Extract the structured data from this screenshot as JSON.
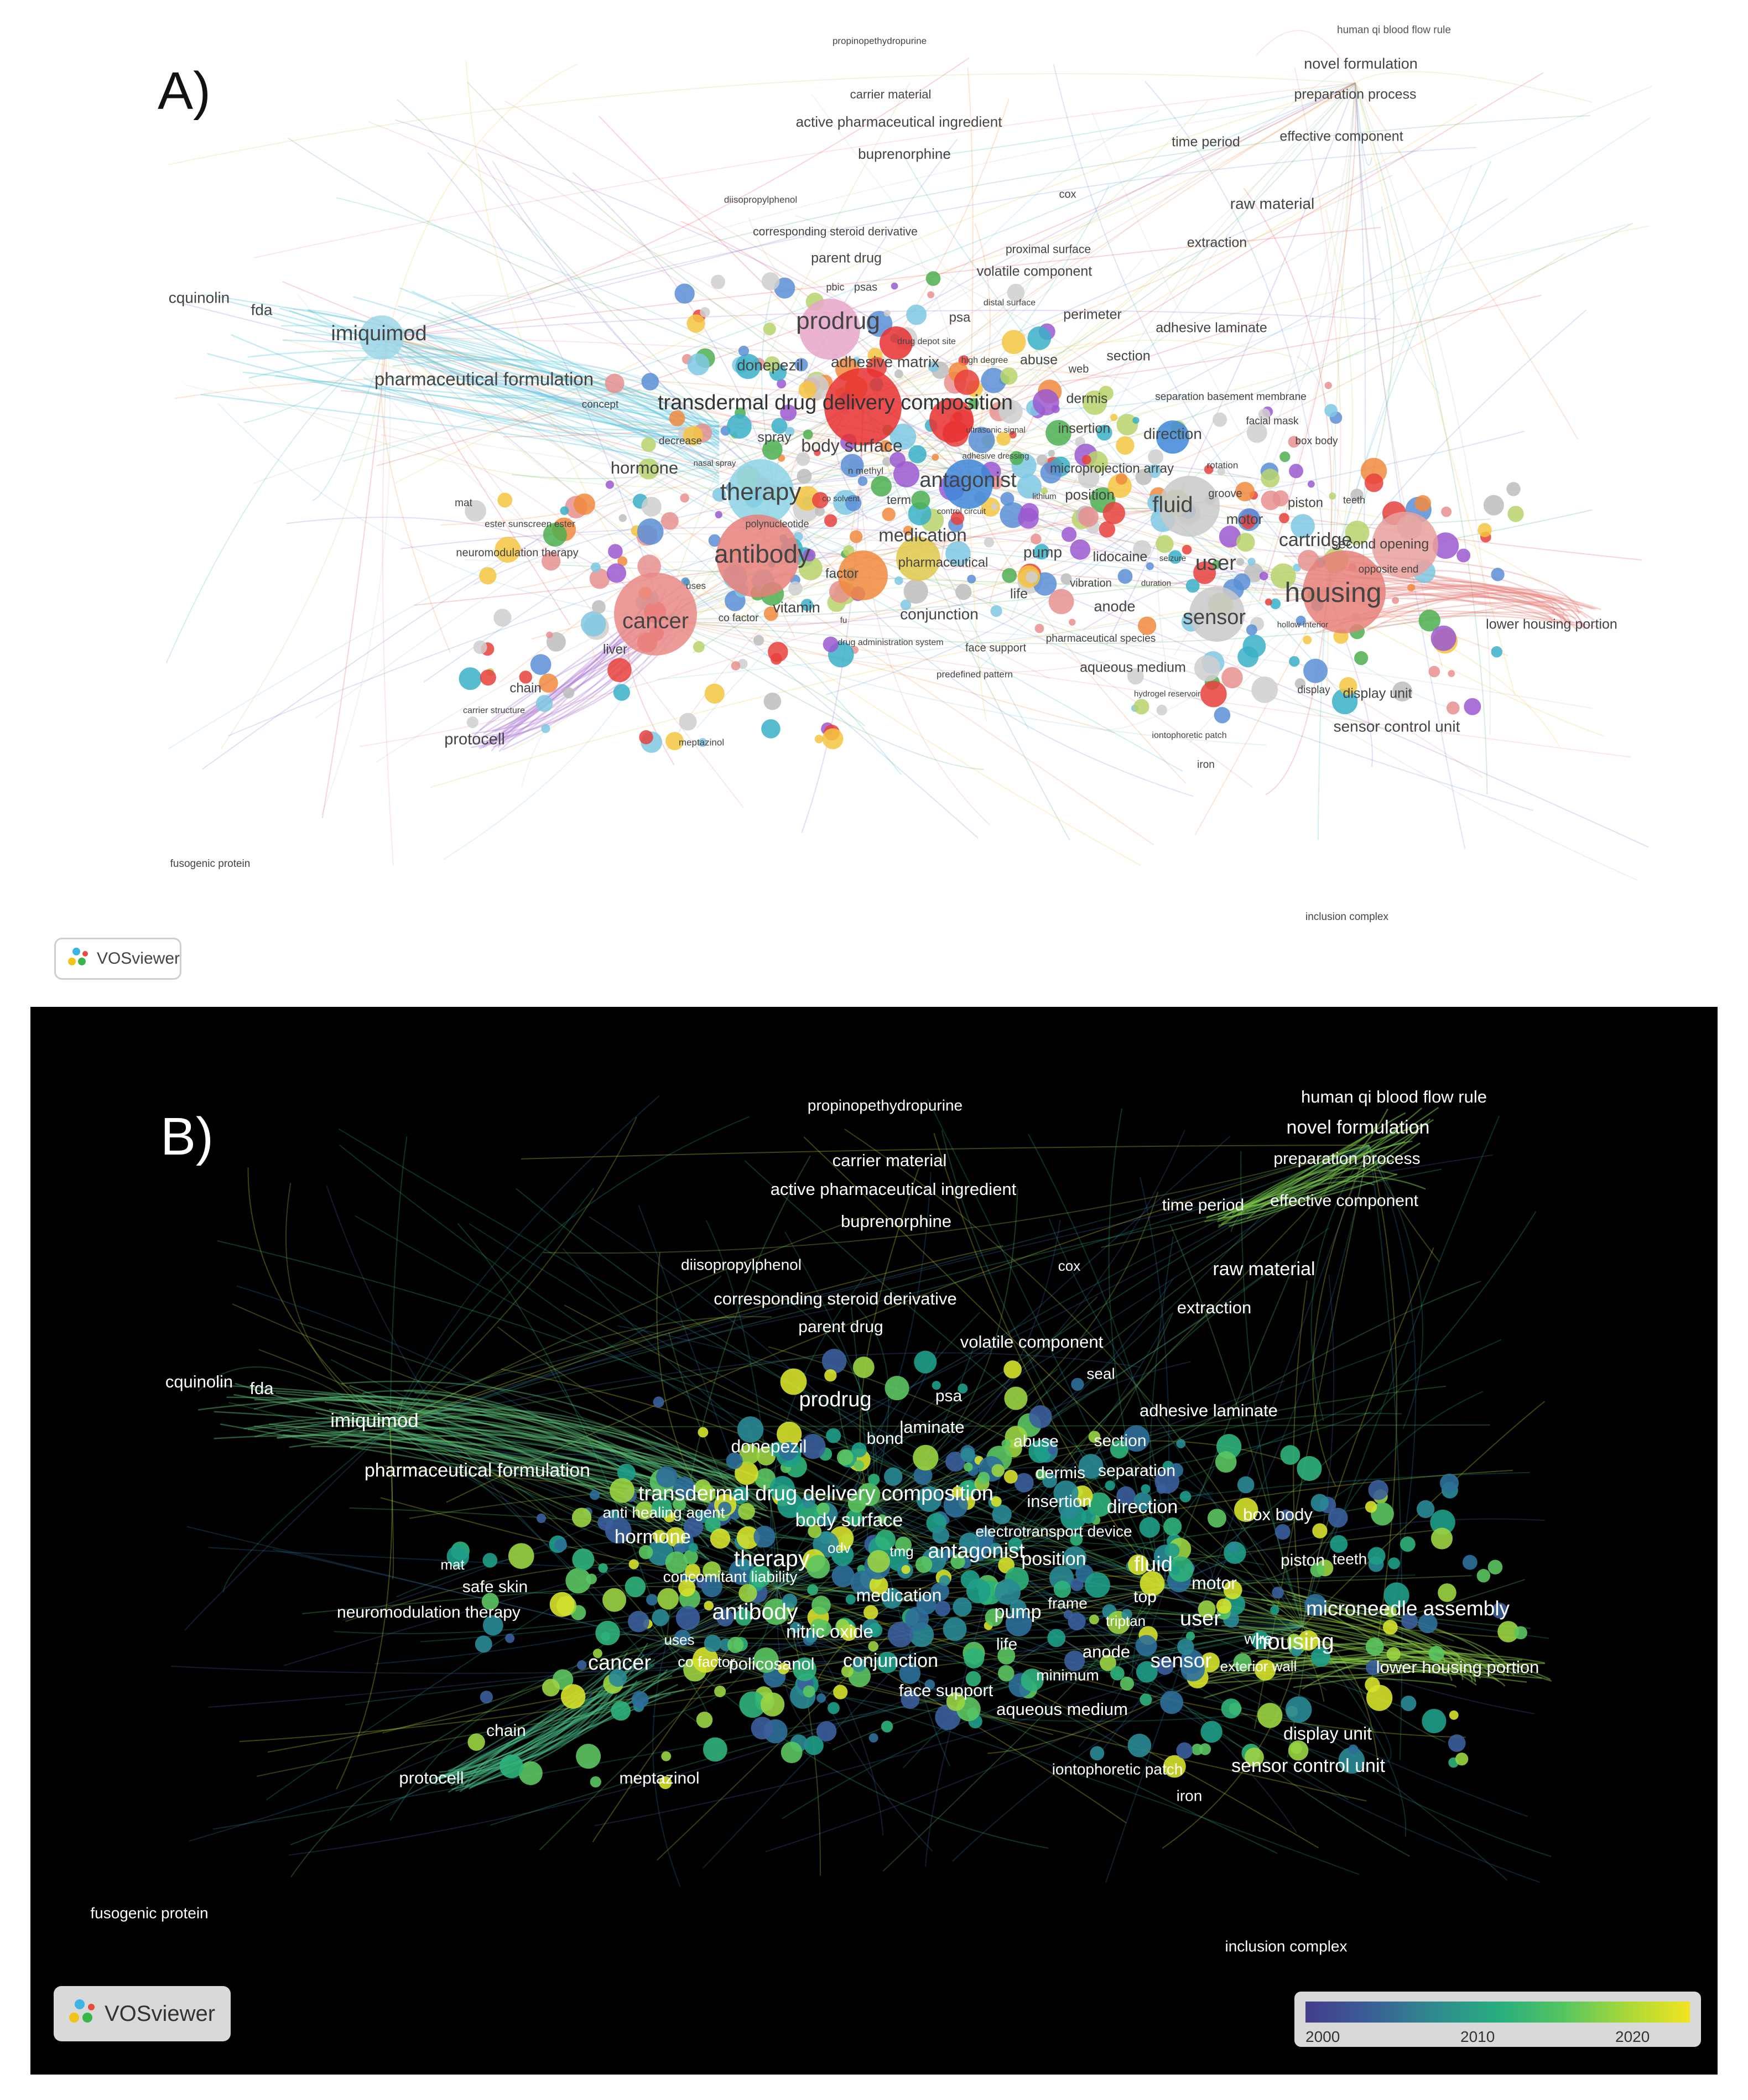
{
  "panel_a": {
    "label": "A)",
    "badge": "VOSviewer",
    "labels": [
      [
        "human qi blood flow rule",
        2520,
        55,
        19,
        "#555"
      ],
      [
        "novel formulation",
        2460,
        117,
        27,
        "#444"
      ],
      [
        "preparation process",
        2450,
        172,
        25,
        "#444"
      ],
      [
        "effective component",
        2425,
        248,
        25,
        "#444"
      ],
      [
        "time period",
        2180,
        258,
        25,
        "#444"
      ],
      [
        "raw material",
        2300,
        370,
        28,
        "#444"
      ],
      [
        "extraction",
        2200,
        440,
        25,
        "#444"
      ],
      [
        "propinopethydropurine",
        1590,
        75,
        17,
        "#444"
      ],
      [
        "carrier material",
        1610,
        172,
        22,
        "#444"
      ],
      [
        "active pharmaceutical ingredient",
        1625,
        222,
        26,
        "#444"
      ],
      [
        "buprenorphine",
        1635,
        280,
        26,
        "#444"
      ],
      [
        "diisopropylphenol",
        1375,
        362,
        17,
        "#444"
      ],
      [
        "cox",
        1930,
        352,
        20,
        "#444"
      ],
      [
        "corresponding steroid derivative",
        1510,
        420,
        21,
        "#444"
      ],
      [
        "parent drug",
        1530,
        468,
        25,
        "#444"
      ],
      [
        "proximal surface",
        1895,
        452,
        21,
        "#444"
      ],
      [
        "volatile component",
        1870,
        492,
        25,
        "#444"
      ],
      [
        "pbic",
        1510,
        520,
        18,
        "#444"
      ],
      [
        "psas",
        1565,
        520,
        20,
        "#444"
      ],
      [
        "distal surface",
        1825,
        548,
        16,
        "#444"
      ],
      [
        "prodrug",
        1515,
        583,
        44,
        "#444"
      ],
      [
        "psa",
        1735,
        575,
        24,
        "#444"
      ],
      [
        "perimeter",
        1975,
        570,
        25,
        "#444"
      ],
      [
        "adhesive laminate",
        2190,
        594,
        25,
        "#444"
      ],
      [
        "cquinolin",
        360,
        540,
        28,
        "#444"
      ],
      [
        "fda",
        473,
        562,
        28,
        "#444"
      ],
      [
        "imiquimod",
        685,
        605,
        38,
        "#444"
      ],
      [
        "pharmaceutical formulation",
        875,
        688,
        33,
        "#444"
      ],
      [
        "donepezil",
        1392,
        662,
        28,
        "#444"
      ],
      [
        "adhesive matrix",
        1600,
        656,
        28,
        "#444"
      ],
      [
        "drug depot site",
        1675,
        618,
        16,
        "#444"
      ],
      [
        "high degree",
        1780,
        652,
        16,
        "#444"
      ],
      [
        "abuse",
        1878,
        652,
        25,
        "#444"
      ],
      [
        "web",
        1950,
        668,
        20,
        "#444"
      ],
      [
        "section",
        2040,
        645,
        25,
        "#444"
      ],
      [
        "transdermal drug delivery composition",
        1510,
        730,
        38,
        "#333"
      ],
      [
        "dermis",
        1965,
        722,
        25,
        "#444"
      ],
      [
        "separation basement membrane",
        2225,
        718,
        19,
        "#444"
      ],
      [
        "facial mask",
        2300,
        762,
        19,
        "#444"
      ],
      [
        "box body",
        2380,
        798,
        19,
        "#444"
      ],
      [
        "concept",
        1085,
        732,
        19,
        "#444"
      ],
      [
        "decrease",
        1230,
        798,
        19,
        "#444"
      ],
      [
        "spray",
        1400,
        792,
        25,
        "#444"
      ],
      [
        "body surface",
        1540,
        808,
        32,
        "#444"
      ],
      [
        "ultrasonic signal",
        1800,
        778,
        15,
        "#444"
      ],
      [
        "insertion",
        1960,
        776,
        25,
        "#444"
      ],
      [
        "direction",
        2120,
        786,
        28,
        "#444"
      ],
      [
        "hormone",
        1165,
        848,
        31,
        "#444"
      ],
      [
        "nasal spray",
        1292,
        838,
        15,
        "#444"
      ],
      [
        "adhesive dressing",
        1800,
        825,
        15,
        "#444"
      ],
      [
        "microprojection array",
        2010,
        848,
        24,
        "#444"
      ],
      [
        "rotation",
        2210,
        842,
        17,
        "#444"
      ],
      [
        "n methyl",
        1565,
        852,
        17,
        "#444"
      ],
      [
        "antagonist",
        1750,
        870,
        38,
        "#444"
      ],
      [
        "therapy",
        1375,
        892,
        44,
        "#444"
      ],
      [
        "term",
        1625,
        905,
        22,
        "#444"
      ],
      [
        "co solvent",
        1520,
        902,
        15,
        "#444"
      ],
      [
        "position",
        1970,
        896,
        26,
        "#444"
      ],
      [
        "lithium",
        1888,
        898,
        15,
        "#444"
      ],
      [
        "groove",
        2215,
        893,
        20,
        "#444"
      ],
      [
        "piston",
        2360,
        910,
        24,
        "#444"
      ],
      [
        "teeth",
        2448,
        905,
        18,
        "#444"
      ],
      [
        "fluid",
        2120,
        915,
        40,
        "#444"
      ],
      [
        "mat",
        838,
        910,
        19,
        "#444"
      ],
      [
        "control circuit",
        1738,
        925,
        15,
        "#444"
      ],
      [
        "polynucleotide",
        1405,
        948,
        18,
        "#444"
      ],
      [
        "motor",
        2250,
        940,
        26,
        "#444"
      ],
      [
        "ester sunscreen ester",
        958,
        948,
        17,
        "#444"
      ],
      [
        "medication",
        1668,
        970,
        33,
        "#444"
      ],
      [
        "cartridge",
        2378,
        978,
        34,
        "#444"
      ],
      [
        "second opening",
        2495,
        985,
        25,
        "#444"
      ],
      [
        "neuromodulation therapy",
        935,
        1000,
        20,
        "#444"
      ],
      [
        "antibody",
        1378,
        1005,
        46,
        "#444"
      ],
      [
        "pump",
        1885,
        1000,
        28,
        "#444"
      ],
      [
        "lidocaine",
        2025,
        1008,
        25,
        "#444"
      ],
      [
        "pharmaceutical",
        1705,
        1018,
        24,
        "#444"
      ],
      [
        "seizure",
        2120,
        1010,
        15,
        "#444"
      ],
      [
        "user",
        2198,
        1020,
        38,
        "#444"
      ],
      [
        "opposite end",
        2510,
        1030,
        19,
        "#444"
      ],
      [
        "factor",
        1522,
        1038,
        24,
        "#444"
      ],
      [
        "vibration",
        1972,
        1055,
        20,
        "#444"
      ],
      [
        "duration",
        2090,
        1055,
        15,
        "#444"
      ],
      [
        "uses",
        1258,
        1060,
        17,
        "#444"
      ],
      [
        "life",
        1842,
        1075,
        25,
        "#444"
      ],
      [
        "housing",
        2410,
        1075,
        50,
        "#444"
      ],
      [
        "anode",
        2015,
        1098,
        27,
        "#444"
      ],
      [
        "vitamin",
        1440,
        1100,
        27,
        "#444"
      ],
      [
        "conjunction",
        1698,
        1112,
        28,
        "#444"
      ],
      [
        "sensor",
        2195,
        1118,
        38,
        "#444"
      ],
      [
        "cancer",
        1185,
        1125,
        40,
        "#444"
      ],
      [
        "co factor",
        1335,
        1118,
        19,
        "#444"
      ],
      [
        "fu",
        1525,
        1122,
        15,
        "#444"
      ],
      [
        "hollow interior",
        2355,
        1130,
        15,
        "#444"
      ],
      [
        "lower housing portion",
        2805,
        1130,
        25,
        "#444"
      ],
      [
        "liver",
        1112,
        1175,
        24,
        "#444"
      ],
      [
        "pharmaceutical species",
        1990,
        1155,
        19,
        "#444"
      ],
      [
        "drug administration system",
        1610,
        1162,
        16,
        "#444"
      ],
      [
        "face support",
        1800,
        1172,
        20,
        "#444"
      ],
      [
        "aqueous medium",
        2048,
        1208,
        25,
        "#444"
      ],
      [
        "predefined pattern",
        1762,
        1220,
        17,
        "#444"
      ],
      [
        "chain",
        950,
        1245,
        24,
        "#444"
      ],
      [
        "hydrogel reservoir",
        2110,
        1255,
        15,
        "#444"
      ],
      [
        "display",
        2375,
        1248,
        19,
        "#444"
      ],
      [
        "display unit",
        2490,
        1255,
        25,
        "#444"
      ],
      [
        "carrier structure",
        893,
        1285,
        16,
        "#444"
      ],
      [
        "sensor control unit",
        2525,
        1315,
        28,
        "#444"
      ],
      [
        "protocell",
        858,
        1338,
        29,
        "#444"
      ],
      [
        "iontophoretic patch",
        2150,
        1330,
        16,
        "#444"
      ],
      [
        "meptazinol",
        1268,
        1343,
        17,
        "#444"
      ],
      [
        "iron",
        2180,
        1383,
        19,
        "#444"
      ],
      [
        "fusogenic protein",
        380,
        1562,
        19,
        "#444"
      ],
      [
        "inclusion complex",
        2435,
        1658,
        19,
        "#444"
      ]
    ]
  },
  "panel_b": {
    "label": "B)",
    "badge": "VOSviewer",
    "colorbar": {
      "ticks": [
        "2000",
        "2010",
        "2020"
      ]
    },
    "labels": [
      [
        "propinopethydropurine",
        1545,
        180,
        28
      ],
      [
        "human qi blood flow rule",
        2465,
        165,
        31
      ],
      [
        "novel formulation",
        2400,
        220,
        34
      ],
      [
        "preparation process",
        2380,
        276,
        30
      ],
      [
        "carrier material",
        1553,
        280,
        31
      ],
      [
        "active pharmaceutical ingredient",
        1560,
        332,
        31
      ],
      [
        "effective component",
        2375,
        352,
        30
      ],
      [
        "time period",
        2120,
        360,
        30
      ],
      [
        "buprenorphine",
        1565,
        390,
        31
      ],
      [
        "diisopropylphenol",
        1285,
        468,
        28
      ],
      [
        "cox",
        1878,
        470,
        26
      ],
      [
        "raw material",
        2230,
        476,
        34
      ],
      [
        "corresponding steroid derivative",
        1455,
        530,
        31
      ],
      [
        "extraction",
        2140,
        546,
        31
      ],
      [
        "parent drug",
        1465,
        580,
        30
      ],
      [
        "volatile component",
        1810,
        608,
        31
      ],
      [
        "seal",
        1935,
        665,
        28
      ],
      [
        "cquinolin",
        305,
        680,
        31
      ],
      [
        "fda",
        418,
        692,
        31
      ],
      [
        "prodrug",
        1455,
        712,
        38
      ],
      [
        "psa",
        1660,
        705,
        30
      ],
      [
        "adhesive laminate",
        2130,
        732,
        31
      ],
      [
        "imiquimod",
        622,
        750,
        35
      ],
      [
        "laminate",
        1630,
        762,
        31
      ],
      [
        "bond",
        1545,
        782,
        30
      ],
      [
        "abuse",
        1818,
        787,
        30
      ],
      [
        "section",
        1970,
        786,
        30
      ],
      [
        "donepezil",
        1335,
        797,
        32
      ],
      [
        "pharmaceutical formulation",
        808,
        840,
        34
      ],
      [
        "dermis",
        1862,
        844,
        30
      ],
      [
        "separation",
        2000,
        840,
        30
      ],
      [
        "transdermal drug delivery composition",
        1420,
        882,
        38
      ],
      [
        "insertion",
        1860,
        896,
        31
      ],
      [
        "direction",
        2010,
        906,
        34
      ],
      [
        "anti healing agent",
        1145,
        916,
        28
      ],
      [
        "box body",
        2255,
        920,
        31
      ],
      [
        "body surface",
        1480,
        930,
        34
      ],
      [
        "electrotransport device",
        1850,
        950,
        28
      ],
      [
        "hormone",
        1125,
        960,
        35
      ],
      [
        "odv",
        1462,
        980,
        26
      ],
      [
        "tmg",
        1575,
        986,
        26
      ],
      [
        "antagonist",
        1710,
        986,
        38
      ],
      [
        "therapy",
        1340,
        1000,
        41
      ],
      [
        "position",
        1850,
        1000,
        34
      ],
      [
        "fluid",
        2030,
        1010,
        38
      ],
      [
        "piston",
        2300,
        1002,
        30
      ],
      [
        "teeth",
        2385,
        1000,
        28
      ],
      [
        "mat",
        763,
        1010,
        26
      ],
      [
        "concomitant liability",
        1265,
        1032,
        28
      ],
      [
        "motor",
        2140,
        1044,
        32
      ],
      [
        "safe skin",
        840,
        1050,
        30
      ],
      [
        "medication",
        1570,
        1066,
        32
      ],
      [
        "frame",
        1875,
        1080,
        28
      ],
      [
        "top",
        2015,
        1068,
        30
      ],
      [
        "microneedle assembly",
        2490,
        1090,
        37
      ],
      [
        "antibody",
        1310,
        1096,
        41
      ],
      [
        "pump",
        1785,
        1096,
        34
      ],
      [
        "neuromodulation therapy",
        720,
        1096,
        30
      ],
      [
        "triptan",
        1980,
        1112,
        26
      ],
      [
        "user",
        2115,
        1108,
        38
      ],
      [
        "nitric oxide",
        1445,
        1132,
        33
      ],
      [
        "uses",
        1173,
        1146,
        26
      ],
      [
        "wire",
        2220,
        1144,
        28
      ],
      [
        "housing",
        2285,
        1150,
        41
      ],
      [
        "life",
        1765,
        1154,
        30
      ],
      [
        "anode",
        1945,
        1168,
        31
      ],
      [
        "cancer",
        1065,
        1188,
        38
      ],
      [
        "co factor",
        1222,
        1186,
        27
      ],
      [
        "policosanol",
        1340,
        1190,
        31
      ],
      [
        "conjunction",
        1555,
        1184,
        34
      ],
      [
        "sensor",
        2080,
        1184,
        37
      ],
      [
        "exterior wall",
        2220,
        1194,
        26
      ],
      [
        "lower housing portion",
        2580,
        1196,
        31
      ],
      [
        "minimum",
        1875,
        1210,
        28
      ],
      [
        "face support",
        1655,
        1238,
        31
      ],
      [
        "aqueous medium",
        1865,
        1272,
        31
      ],
      [
        "display unit",
        2345,
        1316,
        32
      ],
      [
        "chain",
        860,
        1310,
        30
      ],
      [
        "sensor control unit",
        2310,
        1374,
        34
      ],
      [
        "protocell",
        725,
        1396,
        31
      ],
      [
        "iontophoretic patch",
        1965,
        1380,
        28
      ],
      [
        "meptazinol",
        1137,
        1396,
        30
      ],
      [
        "iron",
        2095,
        1428,
        28
      ],
      [
        "fusogenic protein",
        215,
        1640,
        28
      ],
      [
        "inclusion complex",
        2270,
        1700,
        28
      ]
    ]
  }
}
